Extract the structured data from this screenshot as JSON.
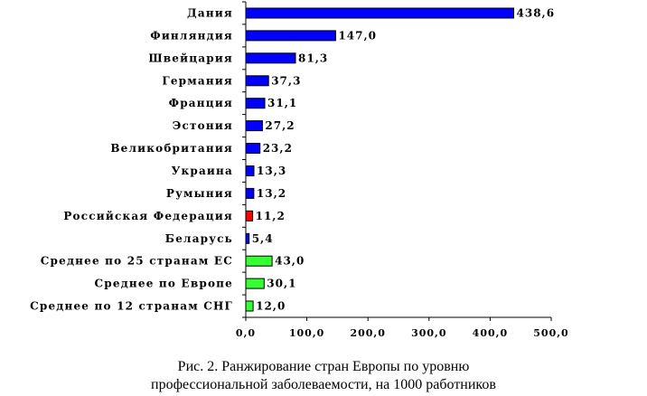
{
  "chart_data": {
    "type": "bar",
    "orientation": "horizontal",
    "categories": [
      "Дания",
      "Финляндия",
      "Швейцария",
      "Германия",
      "Франция",
      "Эстония",
      "Великобритания",
      "Украина",
      "Румыния",
      "Российская Федерация",
      "Беларусь",
      "Среднее по 25 странам ЕС",
      "Среднее по Европе",
      "Среднее по 12 странам СНГ"
    ],
    "values": [
      438.6,
      147.0,
      81.3,
      37.3,
      31.1,
      27.2,
      23.2,
      13.3,
      13.2,
      11.2,
      5.4,
      43.0,
      30.1,
      12.0
    ],
    "value_labels": [
      "438,6",
      "147,0",
      "81,3",
      "37,3",
      "31,1",
      "27,2",
      "23,2",
      "13,3",
      "13,2",
      "11,2",
      "5,4",
      "43,0",
      "30,1",
      "12,0"
    ],
    "bar_colors": [
      "#0000ff",
      "#0000ff",
      "#0000ff",
      "#0000ff",
      "#0000ff",
      "#0000ff",
      "#0000ff",
      "#0000ff",
      "#0000ff",
      "#ff0000",
      "#0000ff",
      "#33ff33",
      "#33ff33",
      "#33ff33"
    ],
    "xlim": [
      0,
      500
    ],
    "xticks": [
      0,
      100,
      200,
      300,
      400,
      500
    ],
    "xtick_labels": [
      "0,0",
      "100,0",
      "200,0",
      "300,0",
      "400,0",
      "500,0"
    ],
    "grid": false,
    "legend": "none"
  },
  "caption": {
    "line1": "Рис. 2. Ранжирование стран Европы по уровню",
    "line2": "профессиональной заболеваемости, на 1000 работников"
  }
}
